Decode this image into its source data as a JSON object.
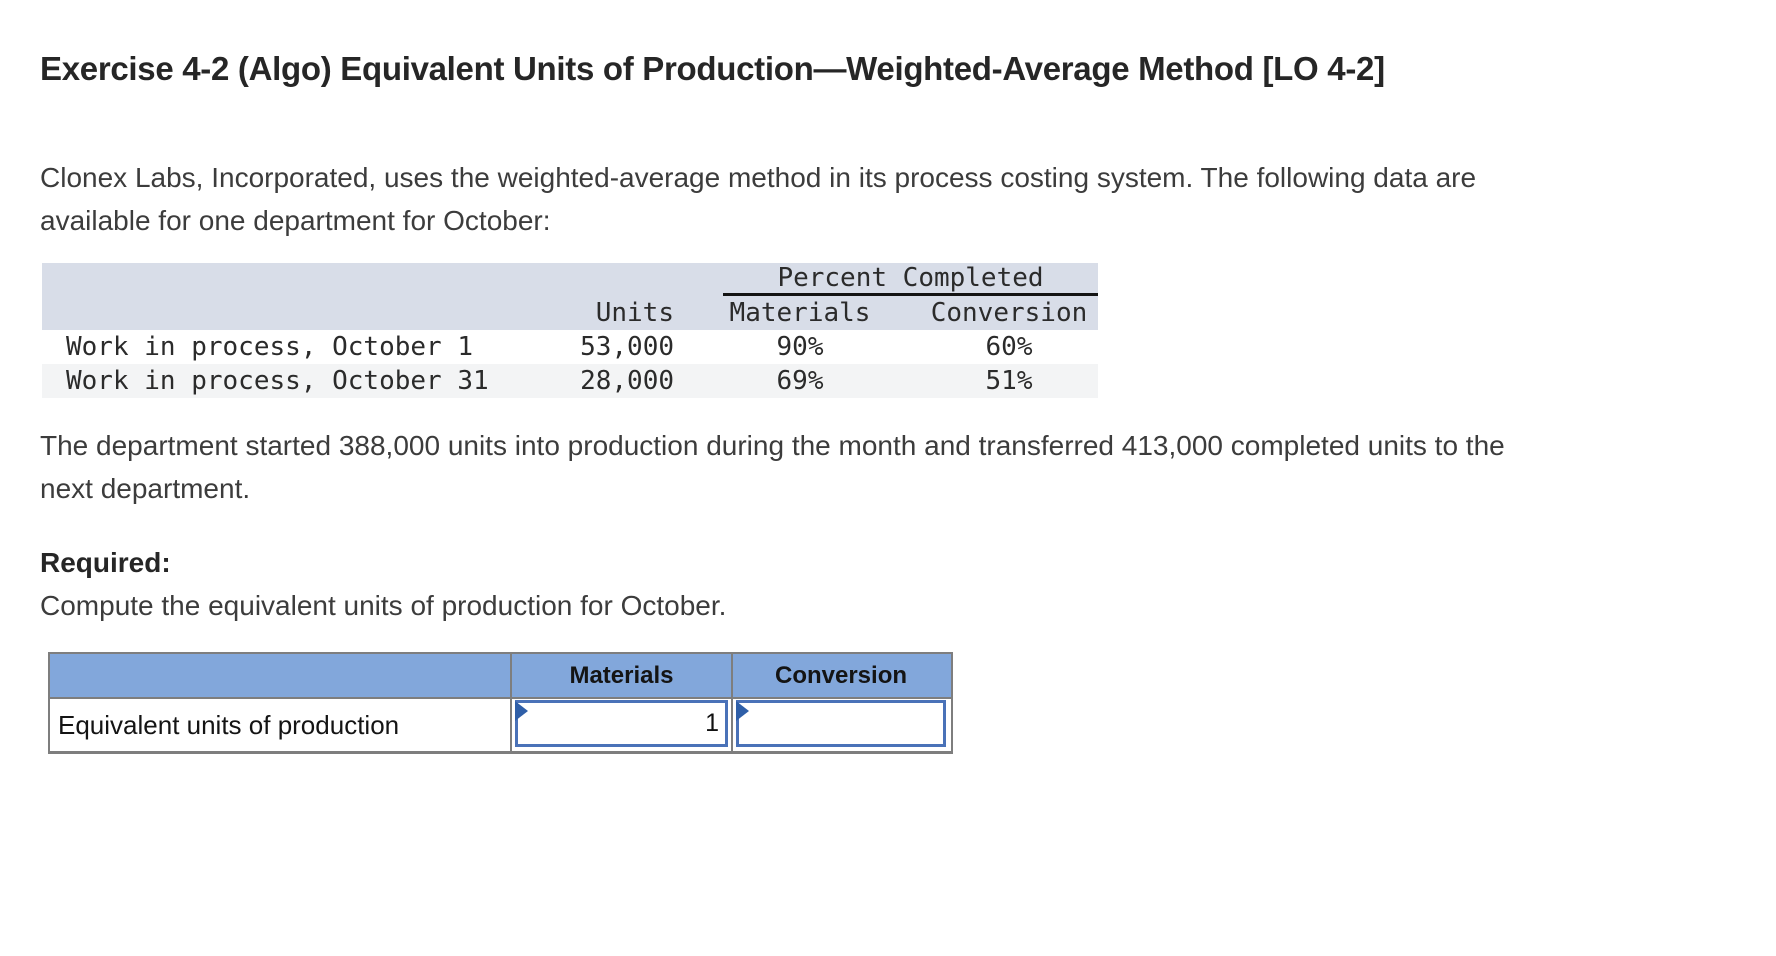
{
  "title": "Exercise 4-2 (Algo) Equivalent Units of Production—Weighted-Average Method [LO 4-2]",
  "intro": {
    "lines": [
      "Clonex Labs, Incorporated, uses the weighted-average method in its process costing system. The following data are",
      "available for one department for October:"
    ]
  },
  "data_table": {
    "group_header": "Percent Completed",
    "columns": {
      "units": "Units",
      "materials": "Materials",
      "conversion": "Conversion"
    },
    "rows": [
      {
        "label": "Work in process, October 1",
        "units": "53,000",
        "materials": "90%",
        "conversion": "60%"
      },
      {
        "label": "Work in process, October 31",
        "units": "28,000",
        "materials": "69%",
        "conversion": "51%"
      }
    ],
    "header_bg": "#d8dde8",
    "alt_row_bg": "#f3f4f5"
  },
  "production_note": {
    "lines": [
      "The department started 388,000 units into production during the month and transferred 413,000 completed units to the",
      "next department."
    ]
  },
  "required": {
    "heading": "Required:",
    "instruction": "Compute the equivalent units of production for October."
  },
  "answer_table": {
    "col_materials": "Materials",
    "col_conversion": "Conversion",
    "row_label": "Equivalent units of production",
    "materials_value": "1",
    "conversion_value": "",
    "header_bg": "#82a7db",
    "input_border": "#4a72b8",
    "flag_color": "#2f5fa8",
    "border_gray": "#7e7e7e"
  }
}
